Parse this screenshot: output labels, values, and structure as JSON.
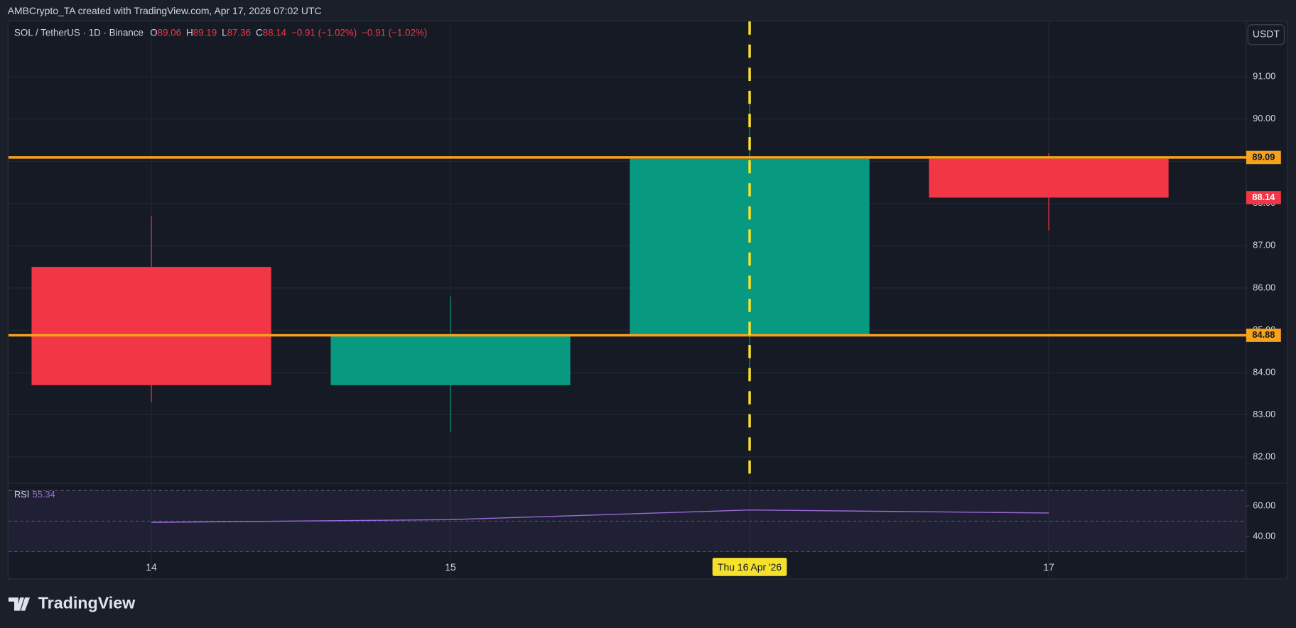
{
  "header": {
    "attribution": "AMBCrypto_TA created with TradingView.com, Apr 17, 2026 07:02 UTC",
    "currency_button": "USDT",
    "logo": "TradingView"
  },
  "chart_data": {
    "type": "candlestick",
    "symbol": "SOL / TetherUS · 1D · Binance",
    "ohlc_labels": [
      "O",
      "H",
      "L",
      "C"
    ],
    "changes": [
      "−0.91 (−1.02%)",
      "−0.91 (−1.02%)"
    ],
    "categories": [
      "14",
      "15",
      "Thu 16 Apr '26",
      "17"
    ],
    "open": [
      86.5,
      83.7,
      84.88,
      89.06
    ],
    "high": [
      87.7,
      85.8,
      90.6,
      89.19
    ],
    "low": [
      83.3,
      82.6,
      83.9,
      87.36
    ],
    "close": [
      83.7,
      84.88,
      89.06,
      88.14
    ],
    "up_color": "#089981",
    "down_color": "#f23645",
    "ylim": [
      81.39,
      92.31
    ],
    "yticks": [
      {
        "value": 82,
        "label": "82.00"
      },
      {
        "value": 83,
        "label": "83.00"
      },
      {
        "value": 84,
        "label": "84.00"
      },
      {
        "value": 85,
        "label": "85.00"
      },
      {
        "value": 86,
        "label": "86.00"
      },
      {
        "value": 87,
        "label": "87.00"
      },
      {
        "value": 88,
        "label": "88.00"
      },
      {
        "value": 89,
        "label": "89.00"
      },
      {
        "value": 90,
        "label": "90.00"
      },
      {
        "value": 91,
        "label": "91.00"
      }
    ],
    "price_lines": [
      89.09,
      84.88
    ],
    "price_line_color": "#f7a21b",
    "grid": true,
    "crosshair": 2,
    "crosshair_color": "#f5e12b",
    "rsi": {
      "name": "RSI",
      "values": [
        49.2,
        51.0,
        57.3,
        55.34
      ],
      "color": "#9c6ad8",
      "ylim": [
        11.9,
        74.6
      ],
      "yticks": [
        {
          "value": 60,
          "label": "60.00"
        },
        {
          "value": 40,
          "label": "40.00"
        }
      ],
      "bands": [
        70,
        50,
        30
      ]
    }
  }
}
